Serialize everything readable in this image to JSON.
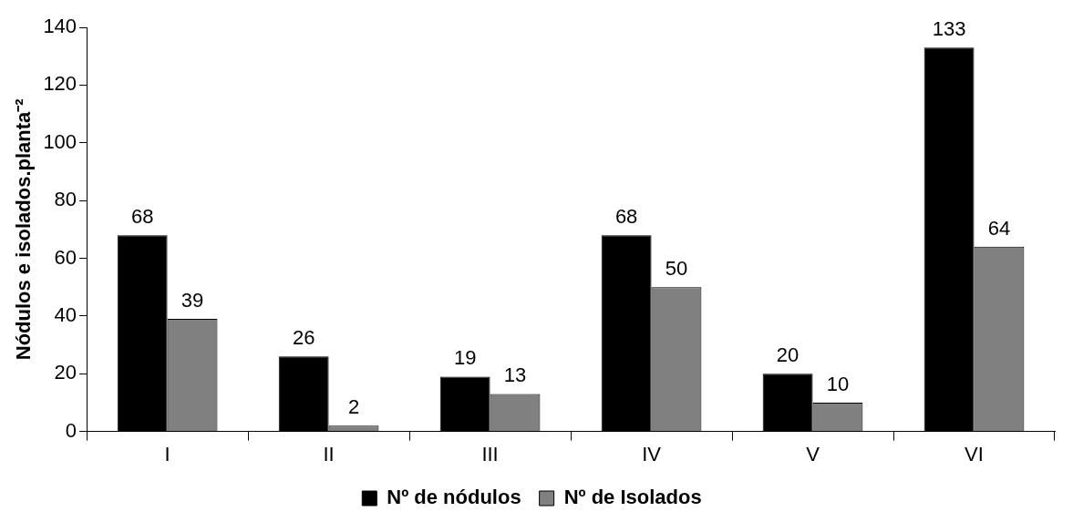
{
  "chart_data": {
    "type": "bar",
    "ylabel": "Nódulos e isolados.planta⁻²",
    "categories": [
      "I",
      "II",
      "III",
      "IV",
      "V",
      "VI"
    ],
    "series": [
      {
        "name": "Nº de nódulos",
        "color": "#000000",
        "values": [
          68,
          26,
          19,
          68,
          20,
          133
        ]
      },
      {
        "name": "Nº de Isolados",
        "color": "#808080",
        "values": [
          39,
          2,
          13,
          50,
          10,
          64
        ]
      }
    ],
    "ylim": [
      0,
      140
    ],
    "yticks": [
      0,
      20,
      40,
      60,
      80,
      100,
      120,
      140
    ],
    "grid": false,
    "legend": "bottom",
    "data_labels": true
  }
}
